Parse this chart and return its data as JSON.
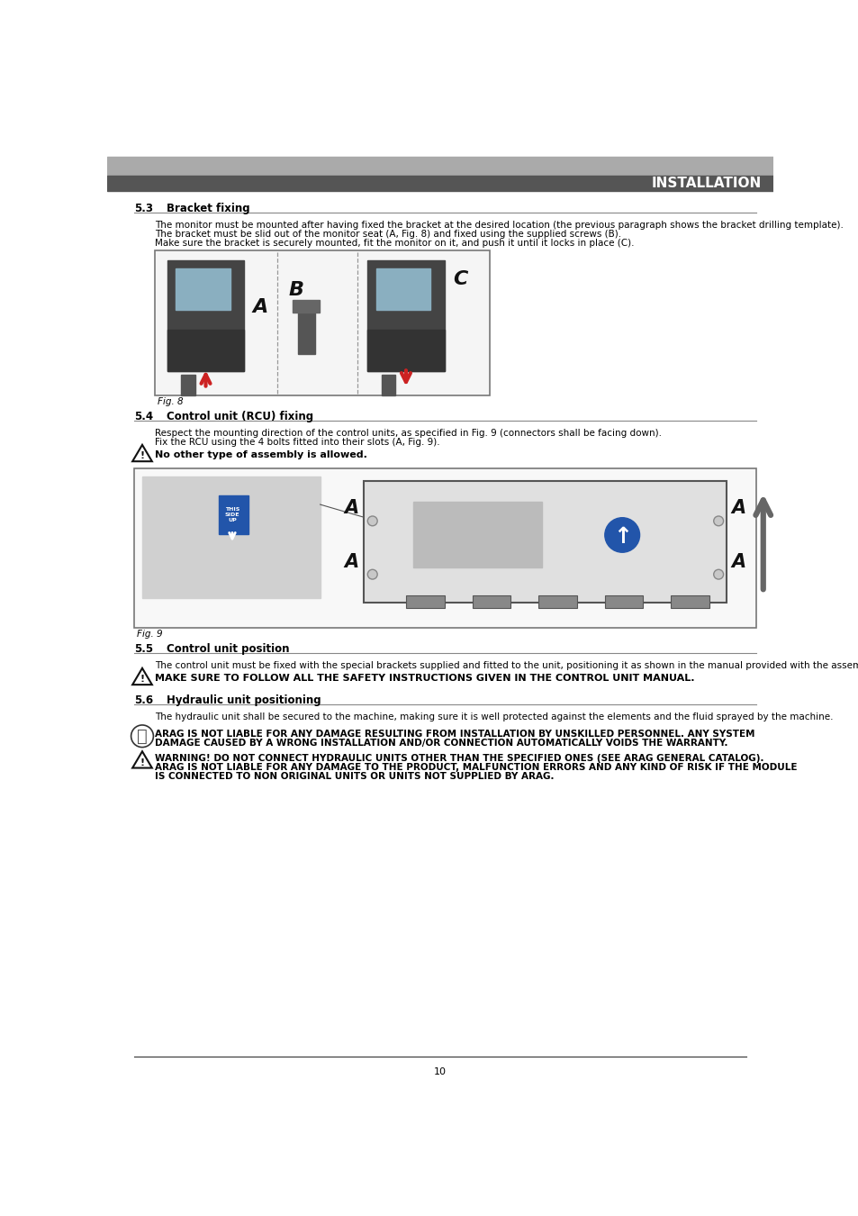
{
  "page_bg": "#ffffff",
  "header_bar_top_color": "#aaaaaa",
  "header_bar_bottom_color": "#555555",
  "header_text": "INSTALLATION",
  "header_text_color": "#ffffff",
  "section_53_num": "5.3",
  "section_53_title": "Bracket fixing",
  "section_53_body1": "The monitor must be mounted after having fixed the bracket at the desired location (the previous paragraph shows the bracket drilling template).",
  "section_53_body2": "The bracket must be slid out of the monitor seat (A, Fig. 8) and fixed using the supplied screws (B).",
  "section_53_body3": "Make sure the bracket is securely mounted, fit the monitor on it, and push it until it locks in place (C).",
  "fig8_label": "Fig. 8",
  "section_54_num": "5.4",
  "section_54_title": "Control unit (RCU) fixing",
  "section_54_body1": "Respect the mounting direction of the control units, as specified in Fig. 9 (connectors shall be facing down).",
  "section_54_body2": "Fix the RCU using the 4 bolts fitted into their slots (A, Fig. 9).",
  "section_54_warning": "No other type of assembly is allowed.",
  "fig9_label": "Fig. 9",
  "section_55_num": "5.5",
  "section_55_title": "Control unit position",
  "section_55_body": "The control unit must be fixed with the special brackets supplied and fitted to the unit, positioning it as shown in the manual provided with the assembly.",
  "section_55_warning": "MAKE SURE TO FOLLOW ALL THE SAFETY INSTRUCTIONS GIVEN IN THE CONTROL UNIT MANUAL.",
  "section_56_num": "5.6",
  "section_56_title": "Hydraulic unit positioning",
  "section_56_body": "The hydraulic unit shall be secured to the machine, making sure it is well protected against the elements and the fluid sprayed by the machine.",
  "section_56_warning1_line1": "ARAG IS NOT LIABLE FOR ANY DAMAGE RESULTING FROM INSTALLATION BY UNSKILLED PERSONNEL. ANY SYSTEM",
  "section_56_warning1_line2": "DAMAGE CAUSED BY A WRONG INSTALLATION AND/OR CONNECTION AUTOMATICALLY VOIDS THE WARRANTY.",
  "section_56_warning2_line1": "WARNING! DO NOT CONNECT HYDRAULIC UNITS OTHER THAN THE SPECIFIED ONES (SEE ARAG GENERAL CATALOG).",
  "section_56_warning2_line2": "ARAG IS NOT LIABLE FOR ANY DAMAGE TO THE PRODUCT, MALFUNCTION ERRORS AND ANY KIND OF RISK IF THE MODULE",
  "section_56_warning2_line3": "IS CONNECTED TO NON ORIGINAL UNITS OR UNITS NOT SUPPLIED BY ARAG.",
  "page_number": "10",
  "section_line_color": "#888888",
  "text_color": "#000000",
  "body_fontsize": 7.5,
  "section_num_fontsize": 8.5,
  "section_title_fontsize": 8.5
}
